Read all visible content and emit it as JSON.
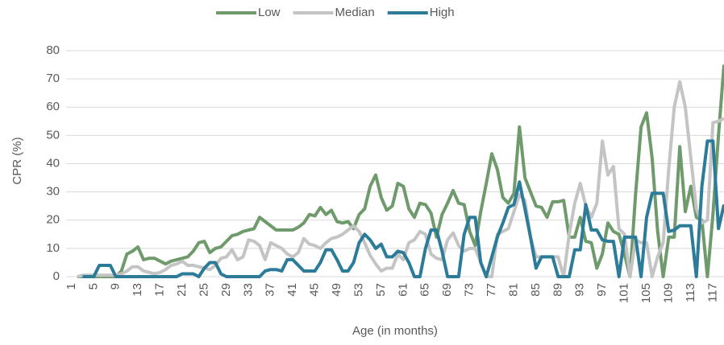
{
  "chart_data": {
    "type": "line",
    "x_label": "Age (in months)",
    "y_label": "CPR (%)",
    "x": [
      1,
      2,
      3,
      4,
      5,
      6,
      7,
      8,
      9,
      10,
      11,
      12,
      13,
      14,
      15,
      16,
      17,
      18,
      19,
      20,
      21,
      22,
      23,
      24,
      25,
      26,
      27,
      28,
      29,
      30,
      31,
      32,
      33,
      34,
      35,
      36,
      37,
      38,
      39,
      40,
      41,
      42,
      43,
      44,
      45,
      46,
      47,
      48,
      49,
      50,
      51,
      52,
      53,
      54,
      55,
      56,
      57,
      58,
      59,
      60,
      61,
      62,
      63,
      64,
      65,
      66,
      67,
      68,
      69,
      70,
      71,
      72,
      73,
      74,
      75,
      76,
      77,
      78,
      79,
      80,
      81,
      82,
      83,
      84,
      85,
      86,
      87,
      88,
      89,
      90,
      91,
      92,
      93,
      94,
      95,
      96,
      97,
      98,
      99,
      100,
      101,
      102,
      103,
      104,
      105,
      106,
      107,
      108,
      109,
      110,
      111,
      112,
      113,
      114,
      115,
      116,
      117,
      118,
      119
    ],
    "xlim": [
      0,
      119
    ],
    "xticks": [
      1,
      5,
      9,
      13,
      17,
      21,
      25,
      29,
      33,
      37,
      41,
      45,
      49,
      53,
      57,
      61,
      65,
      69,
      73,
      77,
      81,
      85,
      89,
      93,
      97,
      101,
      105,
      109,
      113,
      117
    ],
    "ylim": [
      0,
      80
    ],
    "yticks": [
      0,
      10,
      20,
      30,
      40,
      50,
      60,
      70,
      80
    ],
    "grid": true,
    "legend": "top",
    "series": [
      {
        "name": "Low",
        "color": "#6f9b6c",
        "values": [
          null,
          0,
          0,
          0,
          0,
          0,
          0,
          0,
          0,
          2,
          8,
          9,
          10.5,
          6,
          6.5,
          6.5,
          5.5,
          4.5,
          5.5,
          6,
          6.5,
          7,
          9,
          12,
          12.5,
          8.5,
          10,
          10.5,
          12.5,
          14.5,
          15,
          16,
          16.5,
          17,
          21,
          19.5,
          18,
          16.5,
          16.5,
          16.5,
          16.5,
          17.5,
          19,
          22,
          21.5,
          24.5,
          22,
          23.5,
          19.5,
          19,
          19.5,
          17,
          22,
          24,
          32,
          36,
          28,
          23.5,
          25,
          33,
          32,
          24,
          21,
          26,
          25.5,
          22.5,
          14,
          22,
          26,
          30.5,
          26,
          25.5,
          16,
          11,
          23,
          33,
          43.5,
          38,
          28,
          26,
          29.5,
          53,
          35,
          30,
          25,
          24.5,
          21,
          26.5,
          26.5,
          27,
          14,
          14,
          21,
          12.5,
          12,
          3,
          8,
          19,
          16,
          15,
          8,
          0,
          29,
          53,
          58,
          42,
          16,
          0,
          14,
          14,
          46,
          23,
          32,
          21,
          20,
          0,
          22,
          50,
          75
        ]
      },
      {
        "name": "Median",
        "color": "#c4c4c4",
        "values": [
          null,
          0,
          0.5,
          0.5,
          0.5,
          0.5,
          0.5,
          0.5,
          0.5,
          1,
          2,
          3.5,
          3.5,
          2,
          1.5,
          1,
          1.5,
          2.5,
          4,
          4.5,
          5.5,
          4,
          4,
          3.5,
          3,
          2.5,
          4,
          6.5,
          7,
          9.5,
          6,
          7,
          13,
          12.5,
          11,
          6,
          12,
          11,
          10,
          8,
          7,
          8.5,
          13.5,
          11.5,
          11,
          10,
          12,
          13.5,
          14,
          15,
          16.5,
          18,
          16,
          12,
          7.5,
          4.5,
          2,
          3,
          3,
          8,
          6,
          12,
          13,
          16,
          15,
          8,
          6.5,
          6,
          13,
          15.5,
          11,
          9,
          10,
          10,
          5,
          0,
          0,
          15,
          16,
          17,
          23,
          29,
          27,
          14,
          7,
          7,
          7,
          7,
          7,
          0,
          15,
          26,
          33,
          25,
          21,
          26,
          48,
          36,
          39,
          17,
          15,
          0,
          13,
          12,
          12,
          0,
          7,
          12,
          38,
          60,
          69,
          60,
          42,
          24,
          19,
          20,
          54.5,
          55,
          56
        ]
      },
      {
        "name": "High",
        "color": "#2b7b99",
        "values": [
          null,
          null,
          0,
          0,
          0,
          4,
          4,
          4,
          0,
          0,
          0,
          0,
          0,
          0,
          0,
          0,
          0,
          0,
          0,
          0,
          1,
          1,
          1,
          0,
          3,
          5,
          5,
          1,
          0,
          0,
          0,
          0,
          0,
          0,
          0,
          2,
          2.5,
          2.5,
          2,
          6,
          6,
          4,
          2,
          2,
          2,
          5,
          9.5,
          9.5,
          6,
          2,
          2,
          5,
          12,
          15,
          13,
          10,
          11.5,
          7,
          7,
          9,
          8.5,
          5,
          0,
          0,
          10,
          16.5,
          16.5,
          9,
          0,
          0,
          0,
          15,
          21,
          21,
          5,
          0,
          7,
          14,
          19,
          24.5,
          25.5,
          33.5,
          24,
          14,
          3,
          7,
          7,
          7,
          0,
          0,
          0,
          9.5,
          9.5,
          25.5,
          16.5,
          16.5,
          13,
          12.5,
          12.5,
          0,
          14,
          14,
          14,
          0,
          21,
          29.5,
          29.5,
          29.5,
          16,
          16.5,
          18,
          18,
          18,
          0,
          32,
          48,
          48,
          17,
          25.5
        ]
      }
    ]
  }
}
